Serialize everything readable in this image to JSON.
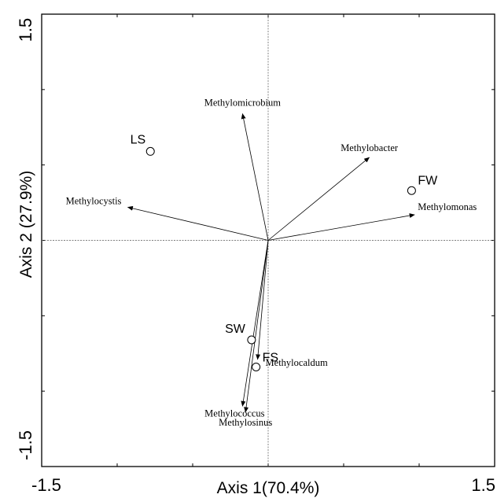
{
  "chart_data": {
    "type": "scatter",
    "subtype": "biplot",
    "title": "",
    "xlabel": "Axis 1(70.4%)",
    "ylabel": "Axis 2 (27.9%)",
    "xlim": [
      -1.5,
      1.5
    ],
    "ylim": [
      -1.5,
      1.5
    ],
    "x_tick_labels": [
      "-1.5",
      "1.5"
    ],
    "y_tick_labels": [
      "-1.5",
      "1.5"
    ],
    "grid": false,
    "origin_lines": true,
    "sites": [
      {
        "name": "LS",
        "x": -0.78,
        "y": 0.59
      },
      {
        "name": "FW",
        "x": 0.95,
        "y": 0.33
      },
      {
        "name": "SW",
        "x": -0.11,
        "y": -0.66
      },
      {
        "name": "FS",
        "x": -0.08,
        "y": -0.84
      }
    ],
    "vectors": [
      {
        "name": "Methylomicrobium",
        "x": -0.17,
        "y": 0.84
      },
      {
        "name": "Methylobacter",
        "x": 0.67,
        "y": 0.55
      },
      {
        "name": "Methylocystis",
        "x": -0.93,
        "y": 0.22
      },
      {
        "name": "Methylomonas",
        "x": 0.97,
        "y": 0.17
      },
      {
        "name": "Methylocaldum",
        "x": -0.07,
        "y": -0.79
      },
      {
        "name": "Methylococcus",
        "x": -0.17,
        "y": -1.1
      },
      {
        "name": "Methylosinus",
        "x": -0.15,
        "y": -1.14
      }
    ]
  }
}
